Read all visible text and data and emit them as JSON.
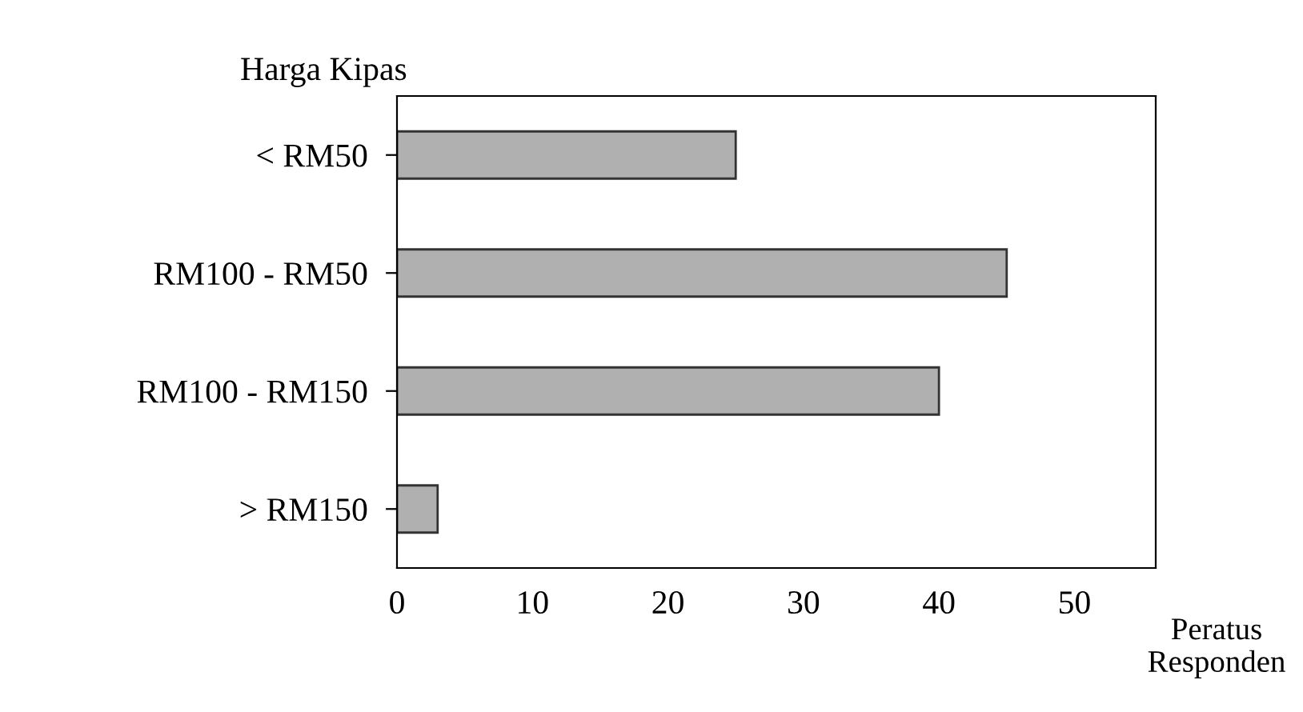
{
  "chart_data": {
    "type": "bar",
    "orientation": "horizontal",
    "ylabel": "Harga Kipas",
    "xlabel": "Peratus\nResponden",
    "categories": [
      "< RM50",
      "RM100 - RM50",
      "RM100 - RM150",
      "> RM150"
    ],
    "values": [
      25,
      45,
      40,
      3
    ],
    "color": "#b0b0b0",
    "xlim": [
      0,
      56
    ],
    "xticks": [
      0,
      10,
      20,
      30,
      40,
      50
    ],
    "grid": false,
    "legend": false
  }
}
